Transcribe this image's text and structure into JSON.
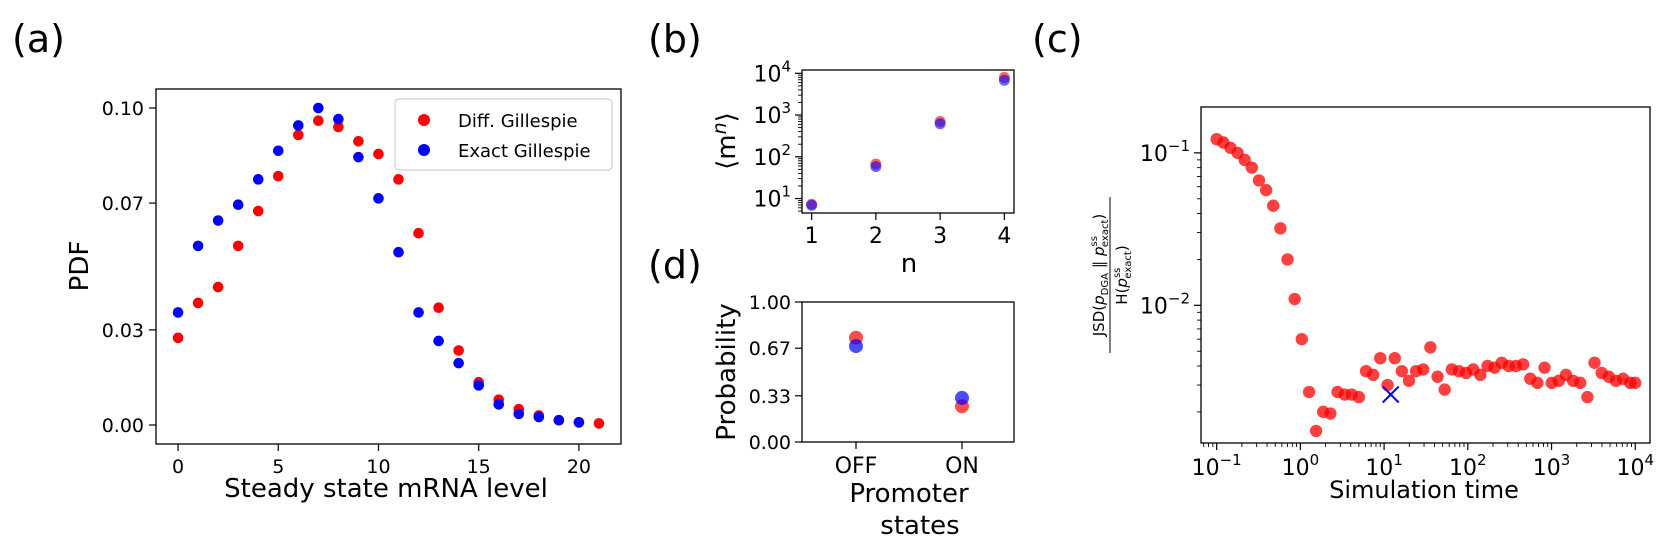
{
  "chart_data": [
    {
      "panel": "(a)",
      "type": "scatter",
      "xlabel": "Steady state mRNA level",
      "ylabel": "PDF",
      "xlim": [
        -1.1,
        22.1
      ],
      "ylim": [
        -0.006,
        0.106
      ],
      "xticks": [
        "0",
        "5",
        "10",
        "15",
        "20"
      ],
      "yticks": [
        "0.00",
        "0.03",
        "0.07",
        "0.10"
      ],
      "legend_position": "top-right",
      "series": [
        {
          "name": "Diff. Gillespie",
          "color": "#ff0000",
          "x": [
            0,
            1,
            2,
            3,
            4,
            5,
            6,
            7,
            8,
            9,
            10,
            11,
            12,
            13,
            14,
            15,
            16,
            17,
            18,
            19,
            20,
            21
          ],
          "y": [
            0.0275,
            0.0385,
            0.0435,
            0.0565,
            0.0675,
            0.0785,
            0.0915,
            0.096,
            0.094,
            0.0895,
            0.0855,
            0.0775,
            0.0605,
            0.037,
            0.0235,
            0.0135,
            0.008,
            0.005,
            0.003,
            0.0015,
            0.0009,
            0.0005
          ]
        },
        {
          "name": "Exact Gillespie",
          "color": "#0000ff",
          "x": [
            0,
            1,
            2,
            3,
            4,
            5,
            6,
            7,
            8,
            9,
            10,
            11,
            12,
            13,
            14,
            15,
            16,
            17,
            18,
            19,
            20
          ],
          "y": [
            0.0355,
            0.0565,
            0.0645,
            0.0695,
            0.0775,
            0.0865,
            0.0945,
            0.1,
            0.0965,
            0.0845,
            0.0715,
            0.0545,
            0.0355,
            0.0265,
            0.0195,
            0.0125,
            0.0065,
            0.0035,
            0.0025,
            0.0015,
            0.0008
          ]
        }
      ]
    },
    {
      "panel": "(b)",
      "type": "scatter",
      "xlabel": "n",
      "ylabel": "⟨m^n⟩",
      "ylabel_base": "⟨m",
      "ylabel_sup": "n",
      "ylabel_end": "⟩",
      "scale_y": "log",
      "xlim": [
        0.85,
        4.15
      ],
      "ylim": [
        4.5,
        12000
      ],
      "xticks": [
        "1",
        "2",
        "3",
        "4"
      ],
      "yticks": [
        {
          "value": 10,
          "exp": "1"
        },
        {
          "value": 100,
          "exp": "2"
        },
        {
          "value": 1000,
          "exp": "3"
        },
        {
          "value": 10000,
          "exp": "4"
        }
      ],
      "series": [
        {
          "name": "Diff. Gillespie",
          "color": "#ff0000",
          "x": [
            1,
            2,
            3,
            4
          ],
          "y": [
            7.3,
            67,
            700,
            8000
          ]
        },
        {
          "name": "Exact Gillespie",
          "color": "#0000ff",
          "x": [
            1,
            2,
            3,
            4
          ],
          "y": [
            6.9,
            58,
            620,
            6800
          ]
        }
      ]
    },
    {
      "panel": "(d)",
      "type": "scatter",
      "xlabel_line1": "Promoter",
      "xlabel_line2": "states",
      "ylabel": "Probability",
      "categories": [
        "OFF",
        "ON"
      ],
      "ylim": [
        0,
        1
      ],
      "yticks": [
        "0.00",
        "0.33",
        "0.67",
        "1.00"
      ],
      "series": [
        {
          "name": "Diff. Gillespie",
          "color": "#ff0000",
          "values": [
            0.745,
            0.255
          ]
        },
        {
          "name": "Exact Gillespie",
          "color": "#0000ff",
          "values": [
            0.685,
            0.315
          ]
        }
      ]
    },
    {
      "panel": "(c)",
      "type": "scatter",
      "xlabel": "Simulation time",
      "ylabel_line1": "JSD(p_DGA || p_exact^ss)",
      "ylabel_line2": "H(p_exact^ss)",
      "ylabel_num_a": "JSD(",
      "ylabel_p": "p",
      "ylabel_sub_dga": "DGA",
      "ylabel_bar": " ∥ ",
      "ylabel_sup_ss": "ss",
      "ylabel_sub_exact": "exact",
      "ylabel_close": ")",
      "ylabel_den_a": "H(",
      "scale_x": "log",
      "scale_y": "log",
      "xlim": [
        0.065,
        15000
      ],
      "ylim": [
        0.00125,
        0.2
      ],
      "xticks": [
        {
          "value": 0.1,
          "exp": "−1"
        },
        {
          "value": 1,
          "exp": "0"
        },
        {
          "value": 10,
          "exp": "1"
        },
        {
          "value": 100,
          "exp": "2"
        },
        {
          "value": 1000,
          "exp": "3"
        },
        {
          "value": 10000,
          "exp": "4"
        }
      ],
      "yticks": [
        {
          "value": 0.1,
          "exp": "−1"
        },
        {
          "value": 0.01,
          "exp": "−2"
        }
      ],
      "series": [
        {
          "name": "Diff. Gillespie",
          "color": "#ff0000",
          "x": [
            0.1,
            0.12,
            0.146,
            0.178,
            0.216,
            0.263,
            0.32,
            0.39,
            0.474,
            0.577,
            0.702,
            0.855,
            1.04,
            1.27,
            1.54,
            1.87,
            2.28,
            2.78,
            3.38,
            4.11,
            5.0,
            6.09,
            7.41,
            9.0,
            11,
            13.4,
            16.3,
            19.8,
            24.1,
            29.3,
            35.7,
            43.5,
            52.9,
            64.4,
            78.3,
            95.3,
            116,
            141,
            172,
            209,
            254,
            309,
            376,
            458,
            557,
            678,
            825,
            1004,
            1222,
            1487,
            1810,
            2203,
            2681,
            3262,
            3970,
            4831,
            5879,
            7155,
            8707,
            10000
          ],
          "y": [
            0.123,
            0.117,
            0.108,
            0.1,
            0.09,
            0.08,
            0.066,
            0.057,
            0.045,
            0.032,
            0.02,
            0.011,
            0.006,
            0.0027,
            0.0015,
            0.002,
            0.00195,
            0.0027,
            0.0026,
            0.0026,
            0.0025,
            0.0037,
            0.0035,
            0.0045,
            0.003,
            0.0045,
            0.0037,
            0.0032,
            0.0037,
            0.0038,
            0.0053,
            0.0034,
            0.0028,
            0.0038,
            0.0037,
            0.0036,
            0.0038,
            0.0035,
            0.004,
            0.0039,
            0.0042,
            0.004,
            0.004,
            0.0041,
            0.0033,
            0.0031,
            0.0039,
            0.0031,
            0.0032,
            0.0035,
            0.0032,
            0.0031,
            0.0025,
            0.0042,
            0.0036,
            0.0034,
            0.0032,
            0.0033,
            0.0031,
            0.0031
          ]
        }
      ],
      "marker": {
        "name": "min",
        "x": 12,
        "y": 0.0026,
        "color": "#0000ff"
      }
    }
  ]
}
